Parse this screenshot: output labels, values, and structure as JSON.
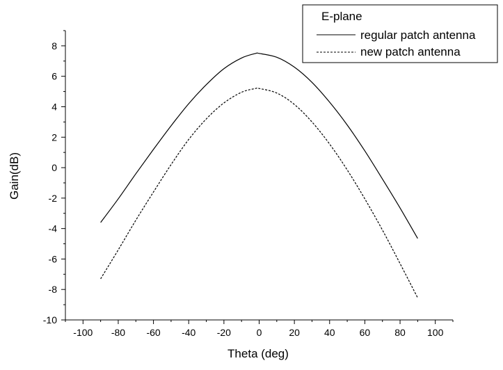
{
  "chart_data": {
    "type": "line",
    "title": "",
    "xlabel": "Theta (deg)",
    "ylabel": "Gain(dB)",
    "xlim": [
      -110,
      110
    ],
    "ylim": [
      -10,
      9
    ],
    "x_ticks": [
      -100,
      -80,
      -60,
      -40,
      -20,
      0,
      20,
      40,
      60,
      80,
      100
    ],
    "y_ticks": [
      -10,
      -8,
      -6,
      -4,
      -2,
      0,
      2,
      4,
      6,
      8
    ],
    "grid": false,
    "legend": {
      "title": "E-plane",
      "placement": "top-right"
    },
    "series": [
      {
        "name": "regular patch antenna",
        "style": "solid",
        "color": "#000000",
        "points": [
          [
            -90,
            -3.6
          ],
          [
            -80,
            -2.05
          ],
          [
            -70,
            -0.4
          ],
          [
            -60,
            1.2
          ],
          [
            -50,
            2.75
          ],
          [
            -40,
            4.2
          ],
          [
            -30,
            5.45
          ],
          [
            -20,
            6.5
          ],
          [
            -10,
            7.2
          ],
          [
            -2,
            7.5
          ],
          [
            0,
            7.5
          ],
          [
            10,
            7.25
          ],
          [
            20,
            6.6
          ],
          [
            30,
            5.6
          ],
          [
            40,
            4.3
          ],
          [
            50,
            2.8
          ],
          [
            60,
            1.1
          ],
          [
            70,
            -0.75
          ],
          [
            80,
            -2.65
          ],
          [
            90,
            -4.65
          ]
        ]
      },
      {
        "name": "new patch antenna",
        "style": "dashed",
        "color": "#000000",
        "points": [
          [
            -90,
            -7.3
          ],
          [
            -80,
            -5.4
          ],
          [
            -70,
            -3.45
          ],
          [
            -60,
            -1.6
          ],
          [
            -50,
            0.2
          ],
          [
            -40,
            1.85
          ],
          [
            -30,
            3.2
          ],
          [
            -20,
            4.25
          ],
          [
            -10,
            4.95
          ],
          [
            -2,
            5.2
          ],
          [
            0,
            5.2
          ],
          [
            10,
            4.9
          ],
          [
            20,
            4.15
          ],
          [
            30,
            3.0
          ],
          [
            40,
            1.55
          ],
          [
            50,
            -0.15
          ],
          [
            60,
            -2.05
          ],
          [
            70,
            -4.1
          ],
          [
            80,
            -6.3
          ],
          [
            90,
            -8.55
          ]
        ]
      }
    ]
  }
}
